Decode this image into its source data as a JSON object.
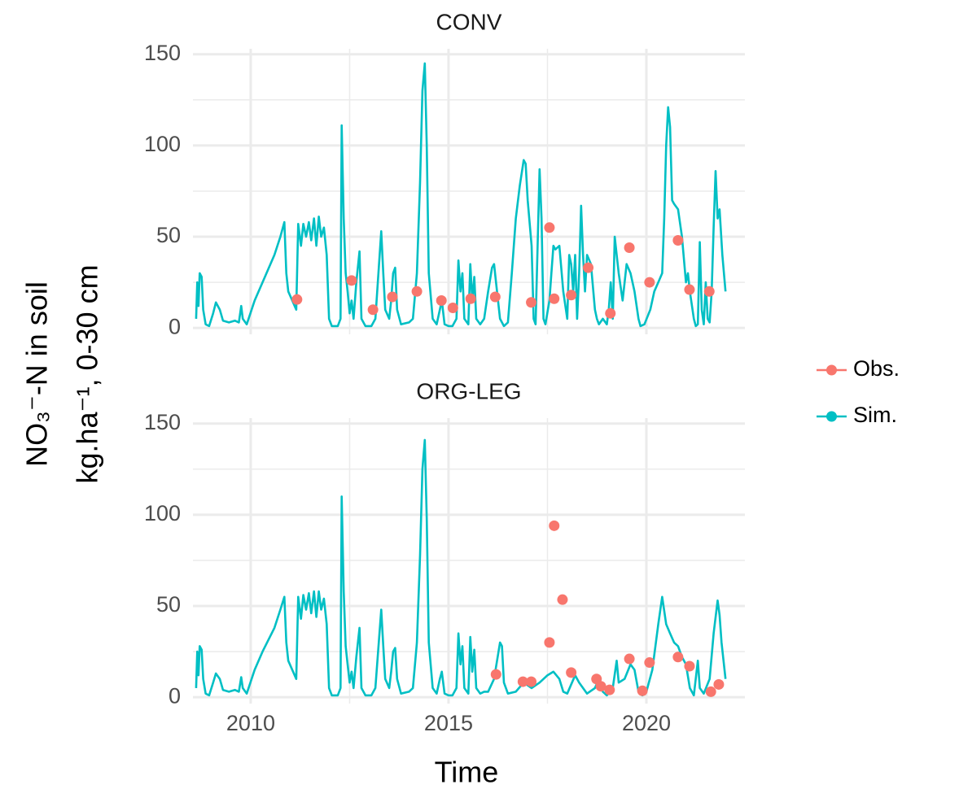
{
  "chart_data": {
    "type": "line",
    "xlabel": "Time",
    "ylabel": [
      "NO₃⁻-N in soil",
      "kg.ha⁻¹, 0-30 cm"
    ],
    "xlim": [
      2008.54,
      2022.49
    ],
    "xticks": [
      2010,
      2015,
      2020
    ],
    "x_minor_ticks": [
      2012.5,
      2017.5
    ],
    "ylim": [
      -3.5,
      153
    ],
    "yticks": [
      0,
      50,
      100,
      150
    ],
    "y_minor_ticks": [
      25,
      75,
      125
    ],
    "grid": true,
    "legend": "right",
    "facets": [
      {
        "title": "CONV",
        "series": [
          {
            "name": "Obs.",
            "color": "#F8766D",
            "style": "point",
            "x": [
              2011.17,
              2012.55,
              2013.09,
              2013.58,
              2014.2,
              2014.82,
              2015.11,
              2015.56,
              2016.18,
              2017.09,
              2017.55,
              2017.67,
              2018.1,
              2018.53,
              2019.09,
              2019.57,
              2020.08,
              2020.8,
              2021.09,
              2021.59
            ],
            "values": [
              15.6,
              26,
              10,
              17,
              20,
              15,
              11,
              16,
              17,
              14,
              55,
              16,
              18,
              33,
              8,
              44,
              25,
              48,
              21,
              20
            ]
          },
          {
            "name": "Sim.",
            "color": "#00BFC4",
            "style": "line",
            "x": [
              2008.62,
              2008.65,
              2008.68,
              2008.71,
              2008.76,
              2008.8,
              2008.86,
              2008.95,
              2009.05,
              2009.12,
              2009.22,
              2009.3,
              2009.45,
              2009.6,
              2009.7,
              2009.76,
              2009.8,
              2009.9,
              2010.1,
              2010.3,
              2010.6,
              2010.75,
              2010.85,
              2010.9,
              2010.95,
              2011.05,
              2011.15,
              2011.2,
              2011.27,
              2011.33,
              2011.4,
              2011.47,
              2011.53,
              2011.6,
              2011.66,
              2011.72,
              2011.78,
              2011.85,
              2011.92,
              2011.98,
              2012.05,
              2012.2,
              2012.27,
              2012.3,
              2012.35,
              2012.4,
              2012.45,
              2012.5,
              2012.55,
              2012.6,
              2012.67,
              2012.75,
              2012.8,
              2012.9,
              2013.05,
              2013.15,
              2013.3,
              2013.35,
              2013.4,
              2013.5,
              2013.55,
              2013.6,
              2013.65,
              2013.7,
              2013.8,
              2014.0,
              2014.1,
              2014.2,
              2014.28,
              2014.34,
              2014.4,
              2014.45,
              2014.5,
              2014.6,
              2014.7,
              2014.78,
              2014.83,
              2014.9,
              2015.0,
              2015.1,
              2015.2,
              2015.25,
              2015.3,
              2015.35,
              2015.4,
              2015.5,
              2015.55,
              2015.6,
              2015.65,
              2015.7,
              2015.8,
              2015.9,
              2016.0,
              2016.1,
              2016.15,
              2016.2,
              2016.3,
              2016.4,
              2016.5,
              2016.6,
              2016.7,
              2016.8,
              2016.9,
              2016.95,
              2017.0,
              2017.1,
              2017.15,
              2017.2,
              2017.3,
              2017.35,
              2017.4,
              2017.45,
              2017.55,
              2017.6,
              2017.65,
              2017.7,
              2017.8,
              2017.9,
              2018.0,
              2018.05,
              2018.1,
              2018.15,
              2018.2,
              2018.25,
              2018.3,
              2018.35,
              2018.4,
              2018.45,
              2018.5,
              2018.6,
              2018.7,
              2018.75,
              2018.8,
              2018.9,
              2019.0,
              2019.05,
              2019.1,
              2019.15,
              2019.2,
              2019.25,
              2019.3,
              2019.4,
              2019.5,
              2019.6,
              2019.7,
              2019.8,
              2019.85,
              2019.95,
              2020.1,
              2020.2,
              2020.3,
              2020.4,
              2020.45,
              2020.5,
              2020.55,
              2020.6,
              2020.65,
              2020.7,
              2020.8,
              2020.9,
              2021.0,
              2021.05,
              2021.1,
              2021.2,
              2021.25,
              2021.3,
              2021.35,
              2021.4,
              2021.45,
              2021.5,
              2021.55,
              2021.6,
              2021.65,
              2021.7,
              2021.75,
              2021.8,
              2021.85,
              2021.92,
              2022.0
            ],
            "values": [
              5,
              25,
              12,
              30,
              28,
              10,
              2,
              1,
              8,
              14,
              10,
              4,
              3,
              4,
              3,
              12,
              5,
              2,
              15,
              25,
              40,
              50,
              58,
              30,
              20,
              15,
              10,
              57,
              45,
              57,
              50,
              58,
              48,
              60,
              45,
              61,
              50,
              55,
              40,
              5,
              1,
              1,
              5,
              111,
              60,
              30,
              20,
              8,
              15,
              5,
              25,
              42,
              5,
              1,
              1,
              5,
              53,
              30,
              10,
              5,
              15,
              30,
              33,
              10,
              2,
              3,
              5,
              30,
              80,
              130,
              145,
              100,
              30,
              5,
              2,
              10,
              15,
              2,
              1,
              1,
              5,
              37,
              20,
              30,
              5,
              2,
              35,
              15,
              28,
              5,
              2,
              5,
              20,
              33,
              35,
              25,
              5,
              1,
              3,
              30,
              60,
              78,
              92,
              90,
              70,
              45,
              5,
              2,
              87,
              60,
              5,
              2,
              15,
              30,
              45,
              43,
              45,
              20,
              5,
              40,
              35,
              20,
              40,
              5,
              30,
              67,
              40,
              20,
              40,
              35,
              10,
              5,
              2,
              5,
              2,
              10,
              25,
              5,
              50,
              40,
              30,
              15,
              35,
              30,
              20,
              5,
              1,
              2,
              10,
              20,
              25,
              30,
              60,
              100,
              121,
              110,
              70,
              68,
              65,
              50,
              25,
              30,
              20,
              5,
              1,
              2,
              47,
              10,
              2,
              25,
              5,
              3,
              20,
              55,
              86,
              60,
              65,
              40,
              20
            ]
          }
        ]
      },
      {
        "title": "ORG-LEG",
        "series": [
          {
            "name": "Obs.",
            "color": "#F8766D",
            "style": "point",
            "x": [
              2016.2,
              2016.88,
              2017.09,
              2017.55,
              2017.67,
              2017.88,
              2018.1,
              2018.74,
              2018.85,
              2019.07,
              2019.57,
              2019.9,
              2020.08,
              2020.8,
              2021.09,
              2021.63,
              2021.83
            ],
            "values": [
              12.5,
              8.5,
              8.5,
              30,
              94,
              53.5,
              13.5,
              10,
              6,
              4,
              21,
              3.5,
              19,
              22,
              17,
              3,
              7
            ]
          },
          {
            "name": "Sim.",
            "color": "#00BFC4",
            "style": "line",
            "x": [
              2008.62,
              2008.65,
              2008.68,
              2008.71,
              2008.76,
              2008.8,
              2008.86,
              2008.95,
              2009.05,
              2009.12,
              2009.22,
              2009.3,
              2009.45,
              2009.6,
              2009.7,
              2009.76,
              2009.8,
              2009.9,
              2010.1,
              2010.3,
              2010.6,
              2010.75,
              2010.85,
              2010.9,
              2010.95,
              2011.05,
              2011.15,
              2011.2,
              2011.27,
              2011.33,
              2011.4,
              2011.47,
              2011.53,
              2011.6,
              2011.66,
              2011.72,
              2011.78,
              2011.85,
              2011.92,
              2011.98,
              2012.05,
              2012.2,
              2012.27,
              2012.3,
              2012.35,
              2012.4,
              2012.45,
              2012.5,
              2012.55,
              2012.6,
              2012.67,
              2012.75,
              2012.8,
              2012.9,
              2013.05,
              2013.15,
              2013.3,
              2013.35,
              2013.4,
              2013.5,
              2013.55,
              2013.6,
              2013.65,
              2013.7,
              2013.8,
              2014.0,
              2014.1,
              2014.2,
              2014.28,
              2014.34,
              2014.4,
              2014.45,
              2014.5,
              2014.6,
              2014.7,
              2014.78,
              2014.83,
              2014.9,
              2015.0,
              2015.1,
              2015.2,
              2015.25,
              2015.3,
              2015.35,
              2015.4,
              2015.5,
              2015.55,
              2015.6,
              2015.65,
              2015.7,
              2015.8,
              2015.9,
              2016.0,
              2016.15,
              2016.3,
              2016.35,
              2016.4,
              2016.5,
              2016.7,
              2016.9,
              2017.1,
              2017.3,
              2017.5,
              2017.65,
              2017.8,
              2017.9,
              2018.0,
              2018.2,
              2018.3,
              2018.5,
              2018.7,
              2018.8,
              2018.9,
              2019.0,
              2019.15,
              2019.25,
              2019.3,
              2019.45,
              2019.6,
              2019.7,
              2019.8,
              2019.9,
              2020.0,
              2020.15,
              2020.3,
              2020.4,
              2020.5,
              2020.6,
              2020.7,
              2020.8,
              2020.9,
              2021.0,
              2021.1,
              2021.2,
              2021.3,
              2021.35,
              2021.45,
              2021.6,
              2021.7,
              2021.8,
              2021.85,
              2021.9,
              2022.0
            ],
            "values": [
              5,
              25,
              12,
              28,
              26,
              10,
              2,
              1,
              8,
              13,
              10,
              4,
              3,
              4,
              3,
              11,
              5,
              2,
              15,
              25,
              38,
              48,
              55,
              30,
              20,
              15,
              10,
              55,
              43,
              56,
              48,
              57,
              46,
              58,
              44,
              58,
              48,
              54,
              40,
              5,
              1,
              1,
              5,
              110,
              58,
              28,
              18,
              8,
              14,
              5,
              22,
              38,
              5,
              1,
              1,
              5,
              48,
              28,
              10,
              5,
              14,
              25,
              27,
              10,
              2,
              3,
              5,
              30,
              78,
              125,
              141,
              98,
              30,
              5,
              2,
              10,
              14,
              2,
              1,
              1,
              5,
              35,
              18,
              28,
              5,
              2,
              33,
              14,
              26,
              5,
              2,
              3,
              3,
              10,
              30,
              28,
              8,
              2,
              3,
              8,
              5,
              8,
              12,
              14,
              10,
              3,
              2,
              12,
              8,
              2,
              5,
              10,
              3,
              1,
              5,
              20,
              8,
              10,
              18,
              15,
              3,
              1,
              3,
              15,
              40,
              55,
              40,
              35,
              30,
              28,
              22,
              18,
              5,
              1,
              20,
              5,
              2,
              10,
              35,
              53,
              45,
              30,
              10
            ]
          }
        ]
      }
    ]
  }
}
